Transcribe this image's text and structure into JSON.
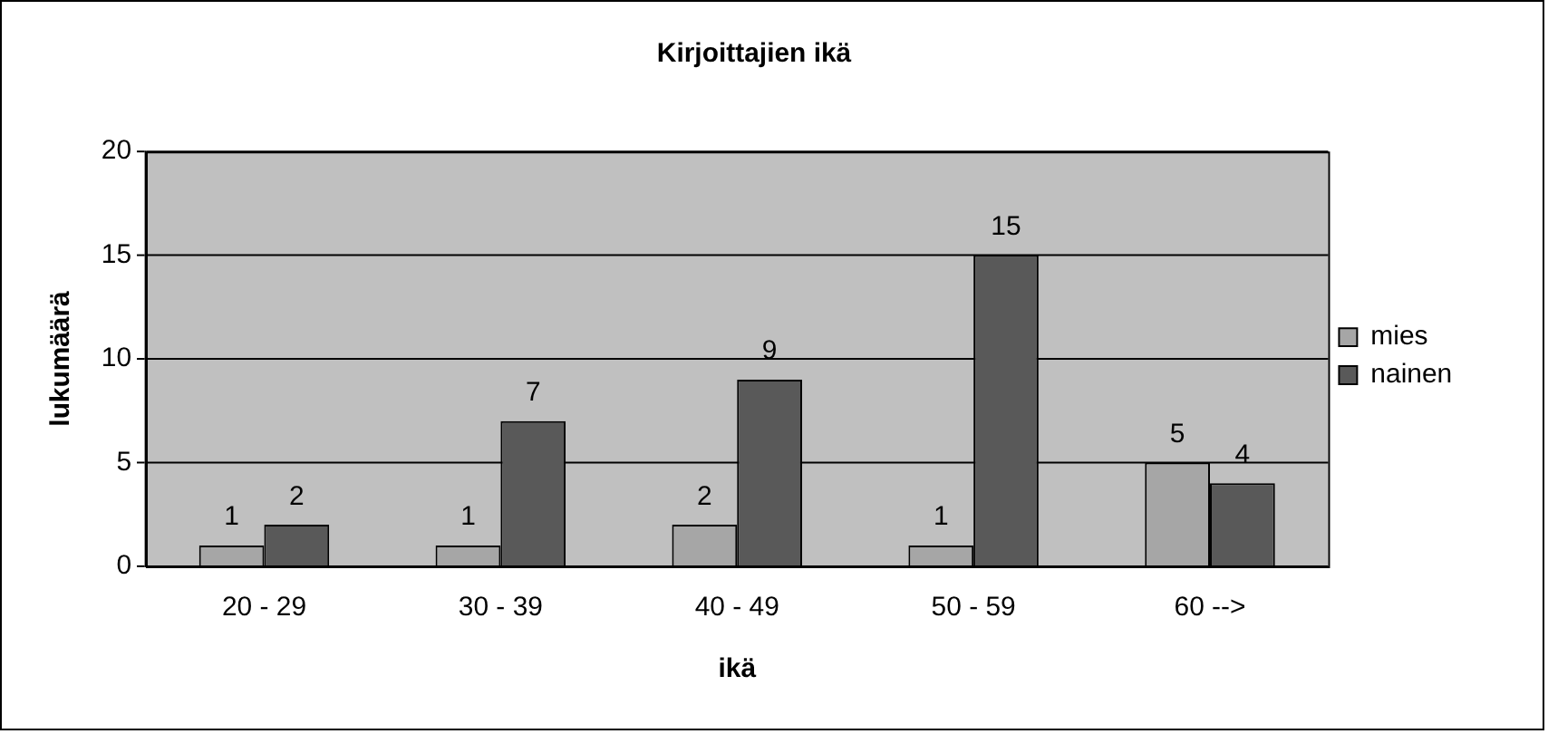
{
  "chart_data": {
    "type": "bar",
    "title": "Kirjoittajien ikä",
    "xlabel": "ikä",
    "ylabel": "lukumäärä",
    "categories": [
      "20 - 29",
      "30 - 39",
      "40 - 49",
      "50 - 59",
      "60 -->"
    ],
    "series": [
      {
        "name": "mies",
        "color": "#a6a6a6",
        "values": [
          1,
          1,
          2,
          1,
          5
        ]
      },
      {
        "name": "nainen",
        "color": "#595959",
        "values": [
          2,
          7,
          9,
          15,
          4
        ]
      }
    ],
    "ylim": [
      0,
      20
    ],
    "yticks": [
      0,
      5,
      10,
      15,
      20
    ],
    "grid": "y",
    "legend": "right",
    "data_labels": true
  }
}
